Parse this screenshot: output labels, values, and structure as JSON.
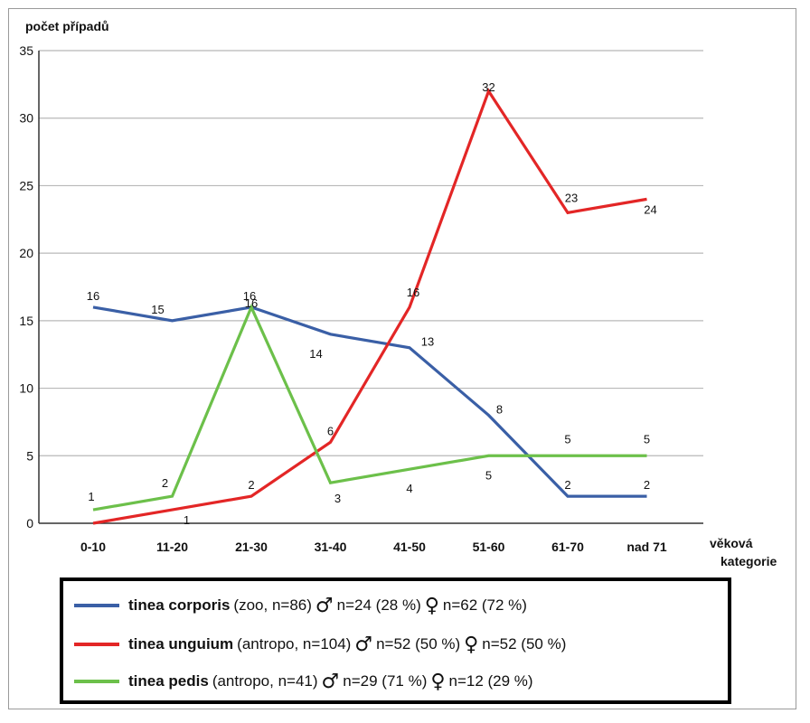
{
  "chart_data": {
    "type": "line",
    "ylabel": "počet případů",
    "xlabel": "věková\nkategorie",
    "categories": [
      "0-10",
      "11-20",
      "21-30",
      "31-40",
      "41-50",
      "51-60",
      "61-70",
      "nad 71"
    ],
    "ylim": [
      0,
      35
    ],
    "yticks": [
      0,
      5,
      10,
      15,
      20,
      25,
      30,
      35
    ],
    "grid": true,
    "series": [
      {
        "name": "tinea corporis",
        "color": "#3a5fa6",
        "values": [
          16,
          15,
          16,
          14,
          13,
          8,
          2,
          2
        ]
      },
      {
        "name": "tinea unguium",
        "color": "#e32626",
        "values": [
          0,
          1,
          2,
          6,
          16,
          32,
          23,
          24
        ]
      },
      {
        "name": "tinea pedis",
        "color": "#6cc04a",
        "values": [
          1,
          2,
          16,
          3,
          4,
          5,
          5,
          5
        ]
      }
    ]
  },
  "legend": [
    {
      "swatch_color": "#3a5fa6",
      "name": "tinea corporis",
      "detail": "(zoo, n=86)",
      "male_symbol": "♂",
      "male": "n=24 (28 %)",
      "female_symbol": "♀",
      "female": "n=62 (72 %)"
    },
    {
      "swatch_color": "#e32626",
      "name": "tinea unguium",
      "detail": "(antropo, n=104)",
      "male_symbol": "♂",
      "male": "n=52 (50 %)",
      "female_symbol": "♀",
      "female": "n=52 (50 %)"
    },
    {
      "swatch_color": "#6cc04a",
      "name": "tinea pedis",
      "detail": "(antropo, n=41)",
      "male_symbol": "♂",
      "male": "n=29 (71 %)",
      "female_symbol": "♀",
      "female": "n=12 (29 %)"
    }
  ]
}
